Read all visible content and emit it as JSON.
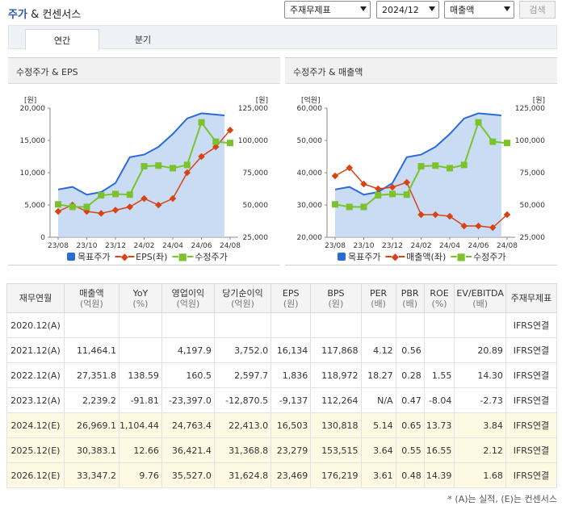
{
  "header": {
    "title_part1": "주가",
    "title_part2": "& 컨센서스"
  },
  "controls": {
    "basis_select": "주재무제표",
    "period_select": "2024/12",
    "metric_select": "매출액",
    "search_button": "검색"
  },
  "tabs": [
    {
      "label": "연간"
    },
    {
      "label": "분기"
    }
  ],
  "colors": {
    "target_price": "#2b6ad9",
    "eps": "#d84315",
    "adj_price": "#7ac32c",
    "sales": "#d84315"
  },
  "chart_data": [
    {
      "type": "line",
      "title": "수정주가 & EPS",
      "categories": [
        "23/08",
        "23/09",
        "23/10",
        "23/11",
        "23/12",
        "24/01",
        "24/02",
        "24/03",
        "24/04",
        "24/05",
        "24/06",
        "24/07",
        "24/08"
      ],
      "x_tick_labels": [
        "23/08",
        "23/10",
        "23/12",
        "24/02",
        "24/04",
        "24/06",
        "24/08"
      ],
      "left_axis": {
        "unit": "[원]",
        "ylim": [
          0,
          20000
        ],
        "ticks": [
          "0",
          "5,000",
          "10,000",
          "15,000",
          "20,000"
        ]
      },
      "right_axis": {
        "unit": "[원]",
        "ylim": [
          25000,
          125000
        ],
        "ticks": [
          "25,000",
          "50,000",
          "75,000",
          "100,000",
          "125,000"
        ]
      },
      "series": [
        {
          "name": "목표주가",
          "axis": "right",
          "style": "area",
          "values": [
            62000,
            64000,
            58000,
            60000,
            67000,
            87000,
            89000,
            95000,
            105000,
            117000,
            121000,
            120000,
            null
          ]
        },
        {
          "name": "EPS(좌)",
          "axis": "left",
          "style": "diamond",
          "values": [
            4000,
            5000,
            4000,
            3700,
            4200,
            4700,
            6000,
            5000,
            6000,
            10000,
            12500,
            14000,
            16600
          ]
        },
        {
          "name": "수정주가",
          "axis": "right",
          "style": "square",
          "values": [
            50500,
            48500,
            48500,
            57500,
            58500,
            58000,
            80000,
            80500,
            78500,
            81000,
            114000,
            99000,
            98000
          ]
        }
      ],
      "legend": [
        "목표주가",
        "EPS(좌)",
        "수정주가"
      ]
    },
    {
      "type": "line",
      "title": "수정주가 & 매출액",
      "categories": [
        "23/08",
        "23/09",
        "23/10",
        "23/11",
        "23/12",
        "24/01",
        "24/02",
        "24/03",
        "24/04",
        "24/05",
        "24/06",
        "24/07",
        "24/08"
      ],
      "x_tick_labels": [
        "23/08",
        "23/10",
        "23/12",
        "24/02",
        "24/04",
        "24/06",
        "24/08"
      ],
      "left_axis": {
        "unit": "[억원]",
        "ylim": [
          20000,
          60000
        ],
        "ticks": [
          "20,000",
          "30,000",
          "40,000",
          "50,000",
          "60,000"
        ]
      },
      "right_axis": {
        "unit": "[원]",
        "ylim": [
          25000,
          125000
        ],
        "ticks": [
          "25,000",
          "50,000",
          "75,000",
          "100,000",
          "125,000"
        ]
      },
      "series": [
        {
          "name": "목표주가",
          "axis": "right",
          "style": "area",
          "values": [
            62000,
            64000,
            58000,
            60000,
            67000,
            87000,
            89000,
            95000,
            105000,
            117000,
            121000,
            120000,
            null
          ]
        },
        {
          "name": "매출액(좌)",
          "axis": "left",
          "style": "diamond",
          "values": [
            39000,
            41500,
            36500,
            35000,
            35500,
            37000,
            27000,
            27000,
            26500,
            23500,
            23500,
            23000,
            27000
          ]
        },
        {
          "name": "수정주가",
          "axis": "right",
          "style": "square",
          "values": [
            50500,
            48500,
            48500,
            57500,
            58500,
            58000,
            80000,
            80500,
            78500,
            81000,
            114000,
            99000,
            98000
          ]
        }
      ],
      "legend": [
        "목표주가",
        "매출액(좌)",
        "수정주가"
      ]
    }
  ],
  "table": {
    "headers": [
      {
        "label": "재무연월",
        "unit": ""
      },
      {
        "label": "매출액",
        "unit": "(억원)"
      },
      {
        "label": "YoY",
        "unit": "(%)"
      },
      {
        "label": "영업이익",
        "unit": "(억원)"
      },
      {
        "label": "당기순이익",
        "unit": "(억원)"
      },
      {
        "label": "EPS",
        "unit": "(원)"
      },
      {
        "label": "BPS",
        "unit": "(원)"
      },
      {
        "label": "PER",
        "unit": "(배)"
      },
      {
        "label": "PBR",
        "unit": "(배)"
      },
      {
        "label": "ROE",
        "unit": "(%)"
      },
      {
        "label": "EV/EBITDA",
        "unit": "(배)"
      },
      {
        "label": "주재무제표",
        "unit": ""
      }
    ],
    "rows": [
      {
        "est": false,
        "cells": [
          "2020.12(A)",
          "",
          "",
          "",
          "",
          "",
          "",
          "",
          "",
          "",
          "",
          "IFRS연결"
        ]
      },
      {
        "est": false,
        "cells": [
          "2021.12(A)",
          "11,464.1",
          "",
          "4,197.9",
          "3,752.0",
          "16,134",
          "117,868",
          "4.12",
          "0.56",
          "",
          "20.89",
          "IFRS연결"
        ]
      },
      {
        "est": false,
        "cells": [
          "2022.12(A)",
          "27,351.8",
          "138.59",
          "160.5",
          "2,597.7",
          "1,836",
          "118,972",
          "18.27",
          "0.28",
          "1.55",
          "14.30",
          "IFRS연결"
        ]
      },
      {
        "est": false,
        "cells": [
          "2023.12(A)",
          "2,239.2",
          "-91.81",
          "-23,397.0",
          "-12,870.5",
          "-9,137",
          "112,264",
          "N/A",
          "0.47",
          "-8.04",
          "-2.73",
          "IFRS연결"
        ]
      },
      {
        "est": true,
        "cells": [
          "2024.12(E)",
          "26,969.1",
          "1,104.44",
          "24,763.4",
          "22,413.0",
          "16,503",
          "130,818",
          "5.14",
          "0.65",
          "13.73",
          "3.84",
          "IFRS연결"
        ]
      },
      {
        "est": true,
        "cells": [
          "2025.12(E)",
          "30,383.1",
          "12.66",
          "36,421.4",
          "31,368.8",
          "23,279",
          "153,515",
          "3.64",
          "0.55",
          "16.55",
          "2.12",
          "IFRS연결"
        ]
      },
      {
        "est": true,
        "cells": [
          "2026.12(E)",
          "33,347.2",
          "9.76",
          "35,527.0",
          "31,624.8",
          "23,469",
          "176,219",
          "3.61",
          "0.48",
          "14.39",
          "1.68",
          "IFRS연결"
        ]
      }
    ]
  },
  "footnote": "* (A)는 실적, (E)는 컨센서스"
}
